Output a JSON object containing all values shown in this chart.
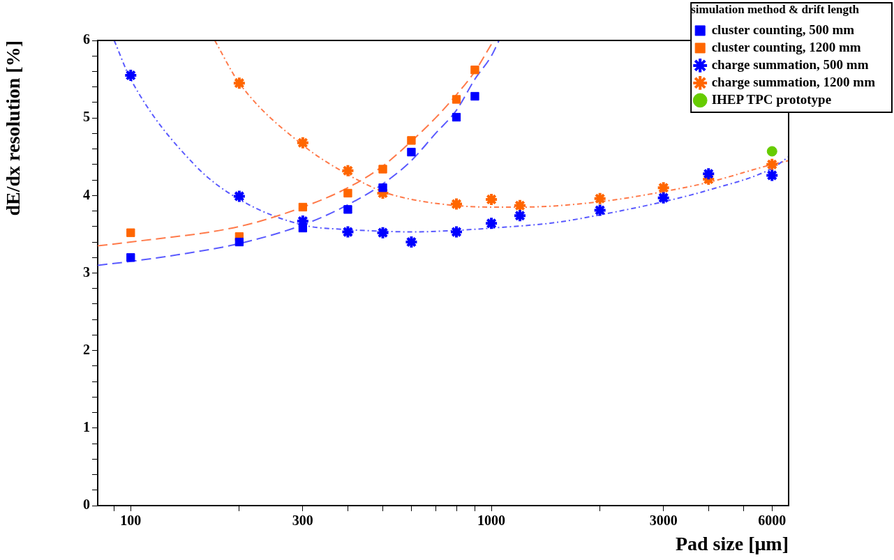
{
  "chart_data": {
    "type": "scatter",
    "xlabel": "Pad size [μm]",
    "ylabel": "dE/dx resolution [%]",
    "legend_title": "simulation method & drift length",
    "legend": "top right",
    "log": "x",
    "grid": false,
    "xlim": [
      81,
      6670
    ],
    "ylim": [
      0,
      6
    ],
    "xticks": [
      {
        "value": 90,
        "label": null
      },
      100,
      {
        "value": 200,
        "label": null
      },
      300,
      {
        "value": 400,
        "label": null
      },
      {
        "value": 500,
        "label": null
      },
      {
        "value": 600,
        "label": null
      },
      {
        "value": 700,
        "label": null
      },
      {
        "value": 800,
        "label": null
      },
      {
        "value": 900,
        "label": null
      },
      1000,
      {
        "value": 2000,
        "label": null
      },
      3000,
      {
        "value": 4000,
        "label": null
      },
      {
        "value": 5000,
        "label": null
      },
      6000
    ],
    "yticks": [
      0,
      {
        "value": 0.2,
        "label": null
      },
      {
        "value": 0.4,
        "label": null
      },
      {
        "value": 0.6,
        "label": null
      },
      {
        "value": 0.8,
        "label": null
      },
      1,
      {
        "value": 1.2,
        "label": null
      },
      {
        "value": 1.4,
        "label": null
      },
      {
        "value": 1.6,
        "label": null
      },
      {
        "value": 1.8,
        "label": null
      },
      2,
      {
        "value": 2.2,
        "label": null
      },
      {
        "value": 2.4,
        "label": null
      },
      {
        "value": 2.6,
        "label": null
      },
      {
        "value": 2.8,
        "label": null
      },
      3,
      {
        "value": 3.2,
        "label": null
      },
      {
        "value": 3.4,
        "label": null
      },
      {
        "value": 3.6,
        "label": null
      },
      {
        "value": 3.8,
        "label": null
      },
      4,
      {
        "value": 4.2,
        "label": null
      },
      {
        "value": 4.4,
        "label": null
      },
      {
        "value": 4.6,
        "label": null
      },
      {
        "value": 4.8,
        "label": null
      },
      5,
      {
        "value": 5.2,
        "label": null
      },
      {
        "value": 5.4,
        "label": null
      },
      {
        "value": 5.6,
        "label": null
      },
      {
        "value": 5.8,
        "label": null
      },
      6
    ],
    "series": [
      {
        "type": "line",
        "color": "#5a5aff",
        "line_style": "dashed",
        "marker": "none",
        "x": [
          81,
          100,
          150,
          200,
          300,
          400,
          500,
          600,
          700,
          800,
          900,
          1000,
          1050
        ],
        "values": [
          3.1,
          3.15,
          3.27,
          3.38,
          3.62,
          3.88,
          4.15,
          4.45,
          4.8,
          5.1,
          5.5,
          5.8,
          6.0
        ]
      },
      {
        "type": "line",
        "color": "#ff7a4a",
        "line_style": "dashed",
        "marker": "none",
        "x": [
          81,
          100,
          200,
          300,
          400,
          500,
          600,
          700,
          800,
          900,
          1000
        ],
        "values": [
          3.35,
          3.4,
          3.6,
          3.85,
          4.1,
          4.38,
          4.7,
          5.0,
          5.3,
          5.6,
          5.95
        ]
      },
      {
        "type": "line",
        "color": "#5a5aff",
        "line_style": "dotted",
        "marker": "none",
        "x": [
          90,
          100,
          150,
          200,
          300,
          400,
          500,
          600,
          800,
          1000,
          1500,
          2000,
          3000,
          4000,
          6000,
          6670
        ],
        "values": [
          6.0,
          5.5,
          4.4,
          3.95,
          3.62,
          3.56,
          3.54,
          3.53,
          3.55,
          3.58,
          3.65,
          3.75,
          3.92,
          4.07,
          4.35,
          4.5
        ]
      },
      {
        "type": "line",
        "color": "#ff7a4a",
        "line_style": "dotted",
        "marker": "none",
        "x": [
          171,
          200,
          300,
          400,
          500,
          600,
          800,
          1000,
          1200,
          2000,
          3000,
          4000,
          6000,
          6670
        ],
        "values": [
          6.0,
          5.45,
          4.65,
          4.27,
          4.05,
          3.95,
          3.87,
          3.85,
          3.85,
          3.92,
          4.05,
          4.17,
          4.4,
          4.45
        ]
      },
      {
        "name": "cluster counting, 500 mm",
        "color": "#0000ff",
        "marker": "square",
        "x": [
          100,
          200,
          300,
          400,
          500,
          600,
          800,
          900
        ],
        "values": [
          3.2,
          3.4,
          3.58,
          3.82,
          4.1,
          4.56,
          5.01,
          5.28
        ]
      },
      {
        "name": "cluster counting, 1200 mm",
        "color": "#ff6600",
        "marker": "square",
        "x": [
          100,
          200,
          300,
          400,
          500,
          600,
          800,
          900
        ],
        "values": [
          3.52,
          3.47,
          3.85,
          4.03,
          4.34,
          4.71,
          5.24,
          5.62
        ]
      },
      {
        "name": "charge summation, 500 mm",
        "color": "#0000ff",
        "marker": "cross",
        "x": [
          100,
          200,
          300,
          400,
          500,
          600,
          800,
          1000,
          1200,
          2000,
          3000,
          4000,
          6000
        ],
        "values": [
          5.55,
          3.99,
          3.67,
          3.53,
          3.52,
          3.4,
          3.53,
          3.64,
          3.74,
          3.81,
          3.97,
          4.28,
          4.26
        ]
      },
      {
        "name": "charge summation, 1200 mm",
        "color": "#ff6600",
        "marker": "cross",
        "x": [
          200,
          300,
          400,
          500,
          800,
          1000,
          1200,
          2000,
          3000,
          4000,
          6000
        ],
        "values": [
          5.45,
          4.68,
          4.32,
          4.03,
          3.89,
          3.95,
          3.87,
          3.96,
          4.1,
          4.21,
          4.4
        ]
      },
      {
        "name": "IHEP TPC prototype",
        "color": "#66cc00",
        "marker": "circle",
        "x": [
          6000
        ],
        "values": [
          4.57
        ]
      }
    ]
  }
}
